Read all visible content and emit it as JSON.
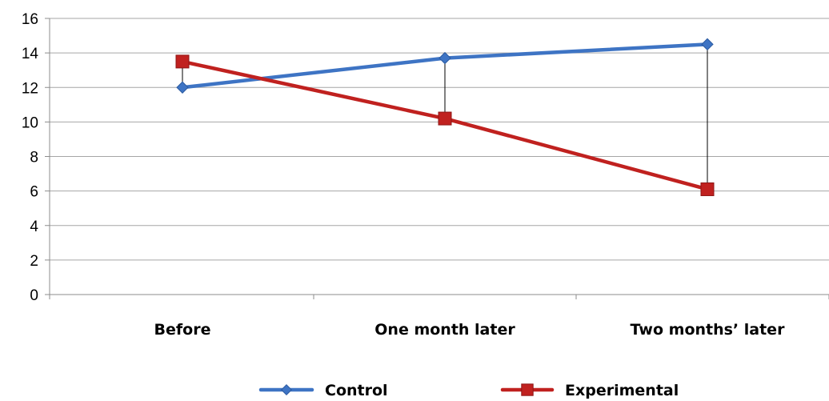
{
  "chart_data": {
    "type": "line",
    "title": "",
    "xlabel": "",
    "ylabel": "",
    "categories": [
      "Before",
      "One month later",
      "Two months’ later"
    ],
    "series": [
      {
        "name": "Control",
        "values": [
          12.0,
          13.7,
          14.5
        ],
        "color": "#3E74C4",
        "marker": "diamond"
      },
      {
        "name": "Experimental",
        "values": [
          13.5,
          10.2,
          6.1
        ],
        "color": "#C0211F",
        "marker": "square"
      }
    ],
    "ylim": [
      0,
      16
    ],
    "yticks": [
      0,
      2,
      4,
      6,
      8,
      10,
      12,
      14,
      16
    ],
    "grid": true,
    "drop_lines": true,
    "legend_position": "bottom"
  }
}
